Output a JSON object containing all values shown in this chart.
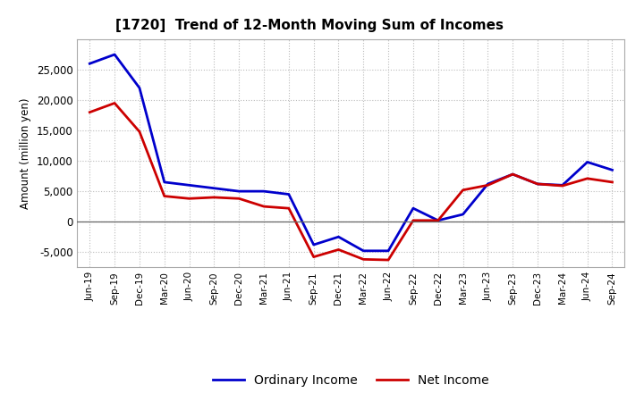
{
  "title": "[1720]  Trend of 12-Month Moving Sum of Incomes",
  "ylabel": "Amount (million yen)",
  "x_labels": [
    "Jun-19",
    "Sep-19",
    "Dec-19",
    "Mar-20",
    "Jun-20",
    "Sep-20",
    "Dec-20",
    "Mar-21",
    "Jun-21",
    "Sep-21",
    "Dec-21",
    "Mar-22",
    "Jun-22",
    "Sep-22",
    "Dec-22",
    "Mar-23",
    "Jun-23",
    "Sep-23",
    "Dec-23",
    "Mar-24",
    "Jun-24",
    "Sep-24"
  ],
  "ordinary_income": [
    26000,
    27500,
    22000,
    6500,
    6000,
    5500,
    5000,
    5000,
    4500,
    -3800,
    -2500,
    -4800,
    -4800,
    2200,
    200,
    1200,
    6200,
    7800,
    6200,
    6000,
    9800,
    8500
  ],
  "net_income": [
    18000,
    19500,
    14800,
    4200,
    3800,
    4000,
    3800,
    2500,
    2200,
    -5800,
    -4600,
    -6200,
    -6300,
    200,
    200,
    5200,
    6000,
    7800,
    6200,
    5900,
    7100,
    6500
  ],
  "ordinary_color": "#0000cc",
  "net_color": "#cc0000",
  "background_color": "#ffffff",
  "plot_bg_color": "#ffffff",
  "grid_color": "#bbbbbb",
  "ylim": [
    -7500,
    30000
  ],
  "yticks": [
    -5000,
    0,
    5000,
    10000,
    15000,
    20000,
    25000
  ],
  "legend_labels": [
    "Ordinary Income",
    "Net Income"
  ]
}
